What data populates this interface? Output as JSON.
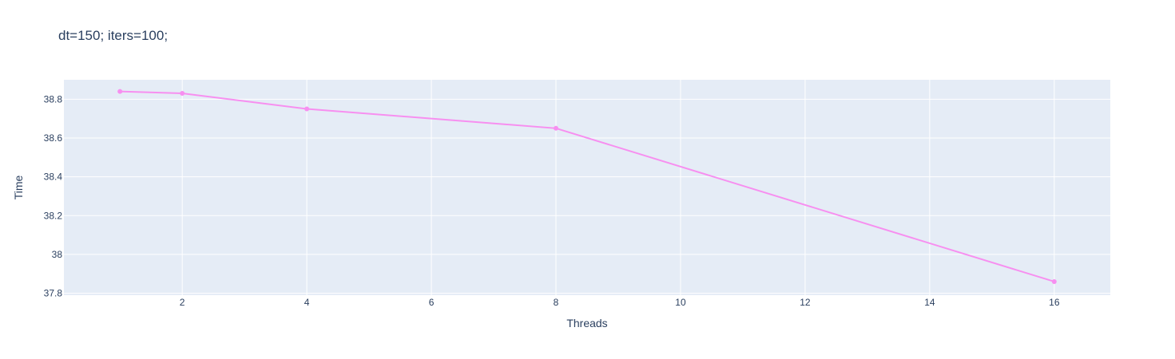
{
  "chart_data": {
    "type": "line",
    "title": "dt=150; iters=100;",
    "xlabel": "Threads",
    "ylabel": "Time",
    "x": [
      1,
      2,
      4,
      8,
      16
    ],
    "series": [
      {
        "values": [
          38.84,
          38.83,
          38.75,
          38.65,
          37.86
        ],
        "color": "#f78ff0"
      }
    ],
    "xlim": [
      0.1,
      16.9
    ],
    "ylim": [
      37.79,
      38.9
    ],
    "xticks": [
      2,
      4,
      6,
      8,
      10,
      12,
      14,
      16
    ],
    "xtick_labels": [
      "2",
      "4",
      "6",
      "8",
      "10",
      "12",
      "14",
      "16"
    ],
    "yticks": [
      37.8,
      38,
      38.2,
      38.4,
      38.6,
      38.8
    ],
    "ytick_labels": [
      "37.8",
      "38",
      "38.2",
      "38.4",
      "38.6",
      "38.8"
    ],
    "grid": true,
    "legend": "none",
    "colors": {
      "plot_background": "#e5ecf6",
      "grid": "#ffffff",
      "text": "#2a3f5f"
    }
  }
}
